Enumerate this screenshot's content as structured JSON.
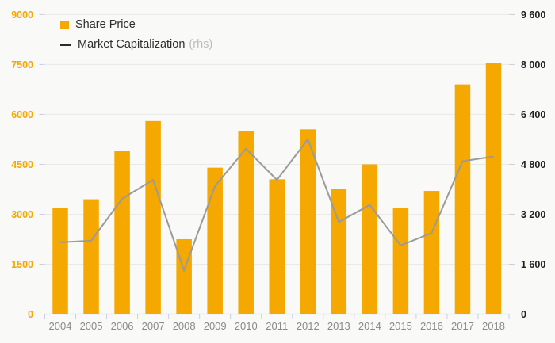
{
  "chart_data": {
    "type": "bar+line combo",
    "categories": [
      "2004",
      "2005",
      "2006",
      "2007",
      "2008",
      "2009",
      "2010",
      "2011",
      "2012",
      "2013",
      "2014",
      "2015",
      "2016",
      "2017",
      "2018"
    ],
    "series": [
      {
        "name": "Share Price",
        "type": "bar",
        "axis": "left",
        "values": [
          3200,
          3450,
          4900,
          5800,
          2250,
          4400,
          5500,
          4050,
          5550,
          3750,
          4500,
          3200,
          3700,
          6900,
          7550
        ]
      },
      {
        "name": "Market Capitalization",
        "type": "line",
        "axis": "right",
        "values": [
          2300,
          2350,
          3700,
          4300,
          1400,
          4100,
          5300,
          4300,
          5600,
          2950,
          3500,
          2200,
          2600,
          4900,
          5050
        ]
      }
    ],
    "left_axis": {
      "min": 0,
      "max": 9000,
      "tick_step": 1500,
      "tick_labels": [
        "0",
        "1500",
        "3000",
        "4500",
        "6000",
        "7500",
        "9000"
      ]
    },
    "right_axis": {
      "min": 0,
      "max": 9600,
      "tick_step": 1600,
      "tick_labels": [
        "0",
        "1 600",
        "3 200",
        "4 800",
        "6 400",
        "8 000",
        "9 600"
      ]
    },
    "grid": true,
    "legend_position": "top-left inside plot"
  },
  "legend": {
    "share_price_label": "Share Price",
    "market_cap_label": "Market Capitalization",
    "market_cap_suffix": "(rhs)"
  },
  "colors": {
    "bar": "#F5A800",
    "line": "#9A9A9A",
    "left_axis_label": "#F5A800",
    "right_axis_label": "#212121",
    "year_label": "#8A8A8A",
    "grid": "#E9E9E6",
    "axis": "#C9CFE2",
    "background": "#F9F9F7",
    "legend_text": "#2E2E2E",
    "legend_rhs": "#BDBDBD",
    "legend_dash": "#2B2B2B"
  }
}
